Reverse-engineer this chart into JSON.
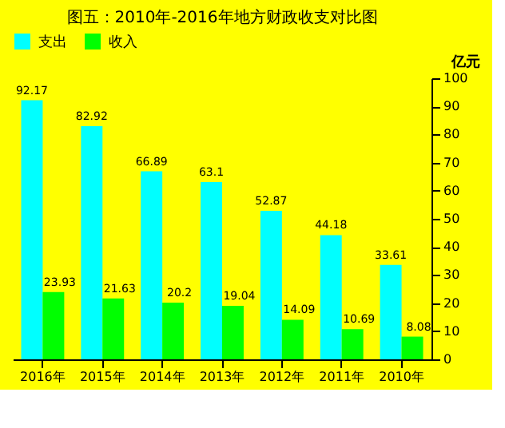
{
  "chart_data": {
    "type": "bar",
    "title": "图五：2010年-2016年地方财政收支对比图",
    "ylabel": "亿元",
    "categories": [
      "2016年",
      "2015年",
      "2014年",
      "2013年",
      "2012年",
      "2011年",
      "2010年"
    ],
    "series": [
      {
        "name": "支出",
        "color": "#00ffff",
        "values": [
          92.17,
          82.92,
          66.89,
          63.1,
          52.87,
          44.18,
          33.61
        ]
      },
      {
        "name": "收入",
        "color": "#00ff00",
        "values": [
          23.93,
          21.63,
          20.2,
          19.04,
          14.09,
          10.69,
          8.08
        ]
      }
    ],
    "ylim": [
      0,
      100
    ],
    "yticks": [
      0,
      10,
      20,
      30,
      40,
      50,
      60,
      70,
      80,
      90,
      100
    ],
    "grid": false,
    "legend": "top",
    "data_labels": true
  }
}
